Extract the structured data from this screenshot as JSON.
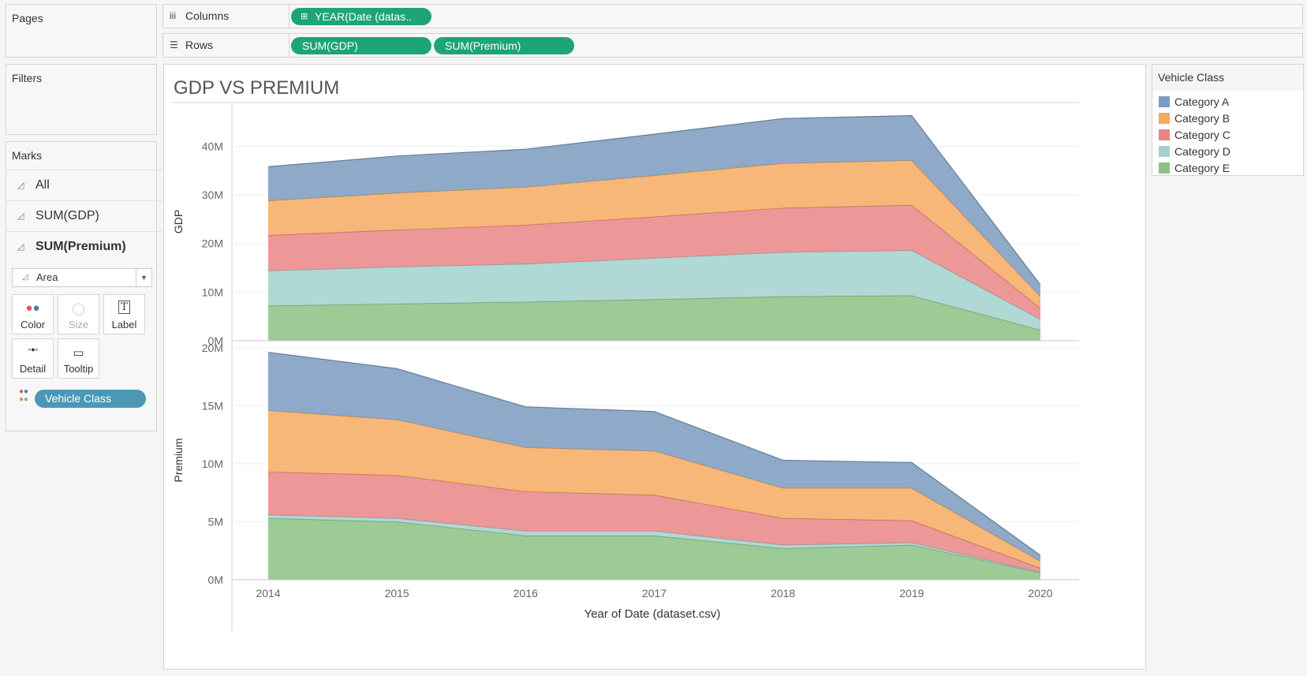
{
  "panels": {
    "pages": "Pages",
    "filters": "Filters",
    "marks": "Marks"
  },
  "shelves": {
    "columns_label": "Columns",
    "columns_pill": "YEAR(Date (datas..",
    "rows_label": "Rows",
    "rows_pills": [
      "SUM(GDP)",
      "SUM(Premium)"
    ]
  },
  "marks": {
    "rows": [
      "All",
      "SUM(GDP)",
      "SUM(Premium)"
    ],
    "mark_type": "Area",
    "buttons": [
      "Color",
      "Size",
      "Label",
      "Detail",
      "Tooltip"
    ],
    "color_pill": "Vehicle Class"
  },
  "legend": {
    "title": "Vehicle Class",
    "items": [
      "Category A",
      "Category B",
      "Category C",
      "Category D",
      "Category E"
    ]
  },
  "colors": {
    "Category A": "#7b9bc0",
    "Category B": "#f5aa61",
    "Category C": "#e98586",
    "Category D": "#a2d1ce",
    "Category E": "#8bc282",
    "pill_green": "#1ea574",
    "pill_blue": "#4a98b6"
  },
  "chart_data": {
    "type": "area",
    "title": "GDP VS PREMIUM",
    "xlabel": "Year of Date (dataset.csv)",
    "x": [
      "2014",
      "2015",
      "2016",
      "2017",
      "2018",
      "2019",
      "2020"
    ],
    "stacked": true,
    "panes": [
      {
        "ylabel": "GDP",
        "ylim": [
          0,
          49000000
        ],
        "ticks": [
          0,
          10000000,
          20000000,
          30000000,
          40000000
        ],
        "tick_labels": [
          "0M",
          "10M",
          "20M",
          "30M",
          "40M"
        ],
        "series": [
          {
            "name": "Category E",
            "values": [
              7200000,
              7600000,
              8000000,
              8500000,
              9100000,
              9300000,
              2200000
            ]
          },
          {
            "name": "Category D",
            "values": [
              7200000,
              7600000,
              7800000,
              8500000,
              9100000,
              9300000,
              2200000
            ]
          },
          {
            "name": "Category C",
            "values": [
              7300000,
              7600000,
              8000000,
              8500000,
              9100000,
              9300000,
              2300000
            ]
          },
          {
            "name": "Category B",
            "values": [
              7100000,
              7600000,
              7800000,
              8500000,
              9200000,
              9200000,
              2400000
            ]
          },
          {
            "name": "Category A",
            "values": [
              7000000,
              7600000,
              7800000,
              8500000,
              9200000,
              9200000,
              2400000
            ]
          }
        ]
      },
      {
        "ylabel": "Premium",
        "ylim": [
          0,
          20600000
        ],
        "ticks": [
          0,
          5000000,
          10000000,
          15000000,
          20000000
        ],
        "tick_labels": [
          "0M",
          "5M",
          "10M",
          "15M",
          "20M"
        ],
        "series": [
          {
            "name": "Category E",
            "values": [
              5300000,
              5000000,
              3800000,
              3800000,
              2700000,
              3000000,
              600000
            ]
          },
          {
            "name": "Category D",
            "values": [
              300000,
              300000,
              400000,
              400000,
              300000,
              200000,
              50000
            ]
          },
          {
            "name": "Category C",
            "values": [
              3700000,
              3700000,
              3400000,
              3100000,
              2300000,
              1900000,
              350000
            ]
          },
          {
            "name": "Category B",
            "values": [
              5300000,
              4800000,
              3800000,
              3800000,
              2600000,
              2800000,
              600000
            ]
          },
          {
            "name": "Category A",
            "values": [
              5000000,
              4400000,
              3500000,
              3400000,
              2400000,
              2200000,
              500000
            ]
          }
        ]
      }
    ]
  }
}
